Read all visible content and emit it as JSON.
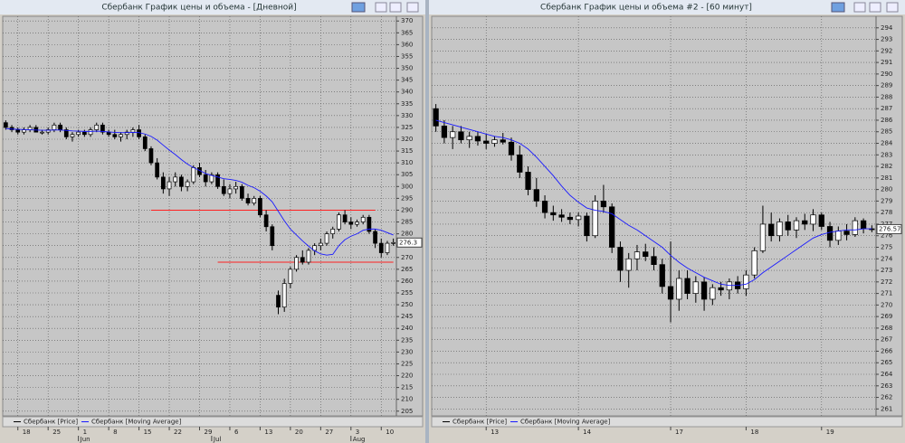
{
  "chart_data": [
    {
      "type": "candlestick",
      "title": "Сбербанк График цены и объема - [Дневной]",
      "categories": [
        null,
        null,
        "18",
        null,
        null,
        null,
        null,
        "25",
        null,
        null,
        null,
        null,
        "1",
        null,
        null,
        null,
        null,
        "8",
        null,
        null,
        null,
        null,
        "15",
        null,
        null,
        null,
        null,
        "22",
        null,
        null,
        null,
        null,
        "29",
        null,
        null,
        null,
        null,
        "6",
        null,
        null,
        null,
        null,
        "13",
        null,
        null,
        null,
        null,
        "20",
        null,
        null,
        null,
        null,
        "27",
        null,
        null,
        null,
        null,
        "3",
        null,
        null,
        null,
        null,
        "10",
        null,
        null
      ],
      "months": [
        null,
        null,
        null,
        null,
        null,
        null,
        null,
        null,
        null,
        null,
        null,
        null,
        "Jun",
        null,
        null,
        null,
        null,
        null,
        null,
        null,
        null,
        null,
        null,
        null,
        null,
        null,
        null,
        null,
        null,
        null,
        null,
        null,
        null,
        null,
        "Jul",
        null,
        null,
        null,
        null,
        null,
        null,
        null,
        null,
        null,
        null,
        null,
        null,
        null,
        null,
        null,
        null,
        null,
        null,
        null,
        null,
        null,
        null,
        "Aug",
        null,
        null,
        null,
        null,
        null,
        null,
        null
      ],
      "series": [
        {
          "name": "Сбербанк [Price]",
          "color": "#000000",
          "ohlc": [
            [
              327,
              328,
              324,
              325
            ],
            [
              325,
              326,
              323,
              324
            ],
            [
              324,
              325,
              322,
              323
            ],
            [
              323,
              325,
              322,
              324
            ],
            [
              324,
              326,
              323,
              325
            ],
            [
              325,
              326,
              323,
              323
            ],
            [
              323,
              324,
              322,
              323
            ],
            [
              323,
              325,
              322,
              324
            ],
            [
              324,
              327,
              323,
              326
            ],
            [
              326,
              327,
              323,
              324
            ],
            [
              324,
              325,
              320,
              321
            ],
            [
              321,
              323,
              319,
              322
            ],
            [
              322,
              324,
              321,
              323
            ],
            [
              323,
              324,
              321,
              322
            ],
            [
              322,
              325,
              321,
              324
            ],
            [
              324,
              327,
              323,
              326
            ],
            [
              326,
              327,
              322,
              323
            ],
            [
              323,
              324,
              321,
              322
            ],
            [
              322,
              324,
              320,
              321
            ],
            [
              321,
              323,
              319,
              322
            ],
            [
              322,
              324,
              320,
              323
            ],
            [
              323,
              325,
              321,
              324
            ],
            [
              324,
              326,
              320,
              321
            ],
            [
              321,
              322,
              315,
              316
            ],
            [
              316,
              317,
              309,
              310
            ],
            [
              310,
              312,
              303,
              304
            ],
            [
              304,
              306,
              297,
              299
            ],
            [
              299,
              304,
              296,
              302
            ],
            [
              302,
              306,
              300,
              304
            ],
            [
              304,
              305,
              298,
              300
            ],
            [
              300,
              303,
              298,
              302
            ],
            [
              302,
              309,
              301,
              308
            ],
            [
              308,
              310,
              304,
              305
            ],
            [
              305,
              307,
              300,
              302
            ],
            [
              302,
              306,
              301,
              305
            ],
            [
              305,
              306,
              299,
              300
            ],
            [
              300,
              303,
              296,
              297
            ],
            [
              297,
              301,
              295,
              299
            ],
            [
              299,
              302,
              297,
              300
            ],
            [
              300,
              301,
              294,
              295
            ],
            [
              295,
              297,
              292,
              293
            ],
            [
              293,
              296,
              292,
              295
            ],
            [
              295,
              296,
              287,
              288
            ],
            [
              288,
              290,
              281,
              283
            ],
            [
              283,
              284,
              273,
              275
            ],
            [
              254,
              256,
              246,
              249
            ],
            [
              249,
              261,
              247,
              259
            ],
            [
              259,
              266,
              257,
              265
            ],
            [
              265,
              271,
              264,
              270
            ],
            [
              270,
              273,
              267,
              268
            ],
            [
              268,
              274,
              267,
              273
            ],
            [
              273,
              276,
              271,
              275
            ],
            [
              275,
              278,
              273,
              276
            ],
            [
              276,
              281,
              275,
              280
            ],
            [
              280,
              283,
              278,
              282
            ],
            [
              282,
              289,
              281,
              288
            ],
            [
              288,
              290,
              284,
              285
            ],
            [
              285,
              287,
              282,
              284
            ],
            [
              284,
              286,
              283,
              285
            ],
            [
              285,
              288,
              284,
              287
            ],
            [
              287,
              288,
              280,
              281
            ],
            [
              281,
              282,
              274,
              276
            ],
            [
              276,
              278,
              270,
              272
            ],
            [
              272,
              277,
              271,
              276
            ],
            [
              276,
              278,
              275,
              276.3
            ]
          ]
        },
        {
          "name": "Сбербанк [Moving Average]",
          "color": "#1a1aff",
          "values": [
            324.5,
            324.3,
            324.2,
            324.1,
            324,
            323.9,
            323.8,
            323.8,
            323.9,
            323.9,
            323.7,
            323.5,
            323.4,
            323.3,
            323.3,
            323.4,
            323.3,
            323.1,
            322.9,
            322.8,
            322.8,
            322.9,
            322.8,
            322.2,
            321.2,
            319.6,
            317.5,
            315.4,
            313.5,
            311.4,
            309.5,
            308,
            306.8,
            305.5,
            304.7,
            304,
            303.3,
            303,
            302.6,
            301.8,
            300.5,
            299.5,
            298,
            296,
            293.5,
            289.5,
            285.5,
            282,
            279.5,
            277,
            274.8,
            272.8,
            271.5,
            271,
            271.3,
            275,
            277.5,
            279,
            280,
            281.5,
            282,
            282,
            281.5,
            280.5,
            279.5
          ]
        }
      ],
      "ylim": [
        203,
        372
      ],
      "yticks": [
        205,
        210,
        215,
        220,
        225,
        230,
        235,
        240,
        245,
        250,
        255,
        260,
        265,
        270,
        275,
        280,
        285,
        290,
        295,
        300,
        305,
        310,
        315,
        320,
        325,
        330,
        335,
        340,
        345,
        350,
        355,
        360,
        365,
        370
      ],
      "grid": true,
      "last_price": 276.3,
      "hlines": [
        {
          "value": 290,
          "color": "#ff2020",
          "x": [
            24,
            61
          ]
        },
        {
          "value": 268,
          "color": "#ff2020",
          "x": [
            35,
            64
          ]
        }
      ]
    },
    {
      "type": "candlestick",
      "title": "Сбербанк График цены и объема #2 - [60 минут]",
      "categories": [
        null,
        null,
        null,
        null,
        null,
        null,
        "13",
        null,
        null,
        null,
        null,
        null,
        null,
        null,
        null,
        null,
        null,
        "14",
        null,
        null,
        null,
        null,
        null,
        null,
        null,
        null,
        null,
        null,
        "17",
        null,
        null,
        null,
        null,
        null,
        null,
        null,
        null,
        "18",
        null,
        null,
        null,
        null,
        null,
        null,
        null,
        null,
        "19",
        null,
        null,
        null,
        null,
        null,
        null
      ],
      "series": [
        {
          "name": "Сбербанк [Price]",
          "color": "#000000",
          "ohlc": [
            [
              287,
              287.4,
              285,
              285.5
            ],
            [
              285.5,
              286,
              284,
              284.5
            ],
            [
              284.5,
              285.5,
              283.5,
              285
            ],
            [
              285,
              285.5,
              284,
              284.3
            ],
            [
              284.3,
              285,
              283.6,
              284.6
            ],
            [
              284.6,
              285,
              283.8,
              284.2
            ],
            [
              284.2,
              284.8,
              283.5,
              284
            ],
            [
              284,
              284.6,
              283.7,
              284.3
            ],
            [
              284.3,
              284.9,
              283.9,
              284.1
            ],
            [
              284.1,
              284.5,
              282.5,
              283
            ],
            [
              283,
              283.8,
              281,
              281.5
            ],
            [
              281.5,
              282,
              279.5,
              280
            ],
            [
              280,
              281,
              278.5,
              279
            ],
            [
              279,
              279.5,
              277.5,
              278
            ],
            [
              278,
              278.6,
              277.3,
              277.8
            ],
            [
              277.8,
              278.3,
              277.2,
              277.6
            ],
            [
              277.6,
              278,
              277,
              277.4
            ],
            [
              277.4,
              278,
              276.8,
              277.7
            ],
            [
              277.7,
              278,
              275.5,
              276
            ],
            [
              276,
              279.5,
              275.8,
              279
            ],
            [
              279,
              280.4,
              278,
              278.5
            ],
            [
              278.5,
              278.8,
              274.5,
              275
            ],
            [
              275,
              275.5,
              272,
              273
            ],
            [
              273,
              274.5,
              271.5,
              274
            ],
            [
              274,
              275.2,
              273,
              274.6
            ],
            [
              274.6,
              275.3,
              273.8,
              274.2
            ],
            [
              274.2,
              275,
              273,
              273.5
            ],
            [
              273.5,
              274,
              271,
              271.6
            ],
            [
              271.6,
              275.5,
              268.5,
              270.5
            ],
            [
              270.5,
              273,
              269.5,
              272.3
            ],
            [
              272.3,
              273,
              270.5,
              271
            ],
            [
              271,
              272.5,
              270.2,
              272
            ],
            [
              272,
              272.4,
              269.5,
              270.5
            ],
            [
              270.5,
              271.8,
              270,
              271.5
            ],
            [
              271.5,
              272,
              270.8,
              271.3
            ],
            [
              271.3,
              272.3,
              270.5,
              272
            ],
            [
              272,
              272.5,
              271,
              271.4
            ],
            [
              271.4,
              273,
              270.8,
              272.6
            ],
            [
              272.6,
              275,
              272.3,
              274.7
            ],
            [
              274.7,
              278.6,
              274.5,
              277
            ],
            [
              277,
              278,
              275.5,
              276
            ],
            [
              276,
              277.5,
              275.5,
              277.2
            ],
            [
              277.2,
              277.8,
              276,
              276.5
            ],
            [
              276.5,
              277.6,
              275.8,
              277.3
            ],
            [
              277.3,
              277.9,
              276.5,
              277
            ],
            [
              277,
              278.3,
              276.4,
              277.8
            ],
            [
              277.8,
              278,
              276.5,
              276.8
            ],
            [
              276.8,
              277.2,
              275,
              275.6
            ],
            [
              275.6,
              276.8,
              275.2,
              276.4
            ],
            [
              276.4,
              277,
              275.6,
              276.1
            ],
            [
              276.1,
              277.6,
              275.9,
              277.3
            ],
            [
              277.3,
              277.5,
              276.2,
              276.6
            ],
            [
              276.6,
              276.9,
              276.3,
              276.57
            ]
          ]
        },
        {
          "name": "Сбербанк [Moving Average]",
          "color": "#1a1aff",
          "values": [
            286,
            285.8,
            285.6,
            285.4,
            285.2,
            285,
            284.8,
            284.6,
            284.5,
            284.3,
            284,
            283.5,
            282.8,
            282,
            281.2,
            280.3,
            279.5,
            278.9,
            278.4,
            278.2,
            278.1,
            277.9,
            277.4,
            276.9,
            276.5,
            276,
            275.5,
            275,
            274.3,
            273.7,
            273.2,
            272.8,
            272.4,
            272.1,
            271.8,
            271.7,
            271.7,
            271.8,
            272.2,
            272.8,
            273.3,
            273.8,
            274.3,
            274.8,
            275.3,
            275.8,
            276.1,
            276.3,
            276.4,
            276.5,
            276.5,
            276.6,
            276.6
          ]
        }
      ],
      "ylim": [
        260.4,
        295
      ],
      "yticks": [
        261,
        262,
        263,
        264,
        265,
        266,
        267,
        268,
        269,
        270,
        271,
        272,
        273,
        274,
        275,
        276,
        277,
        278,
        279,
        280,
        281,
        282,
        283,
        284,
        285,
        286,
        287,
        288,
        289,
        290,
        291,
        292,
        293,
        294
      ],
      "grid": true,
      "last_price": 276.57
    }
  ]
}
